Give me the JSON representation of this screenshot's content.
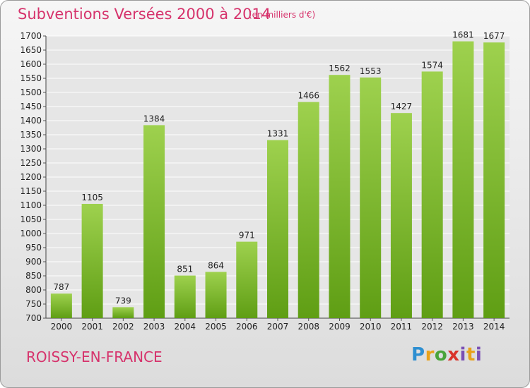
{
  "header": {
    "title": "Subventions Versées 2000 à 2014",
    "subtitle": "(en milliers d'€)"
  },
  "footer": {
    "commune": "ROISSY-EN-FRANCE",
    "logo": "Proxiti"
  },
  "chart_data": {
    "type": "bar",
    "title": "Subventions Versées 2000 à 2014",
    "subtitle": "(en milliers d'€)",
    "categories": [
      "2000",
      "2001",
      "2002",
      "2003",
      "2004",
      "2005",
      "2006",
      "2007",
      "2008",
      "2009",
      "2010",
      "2011",
      "2012",
      "2013",
      "2014"
    ],
    "values": [
      787,
      1105,
      739,
      1384,
      851,
      864,
      971,
      1331,
      1466,
      1562,
      1553,
      1427,
      1574,
      1681,
      1677
    ],
    "ylim": [
      700,
      1700
    ],
    "yticks": [
      700,
      750,
      800,
      850,
      900,
      950,
      1000,
      1050,
      1100,
      1150,
      1200,
      1250,
      1300,
      1350,
      1400,
      1450,
      1500,
      1550,
      1600,
      1650,
      1700
    ],
    "grid": true,
    "bar_color_top": "#9ed14e",
    "bar_color_bottom": "#5f9e14",
    "text_color": "#d6336c"
  }
}
